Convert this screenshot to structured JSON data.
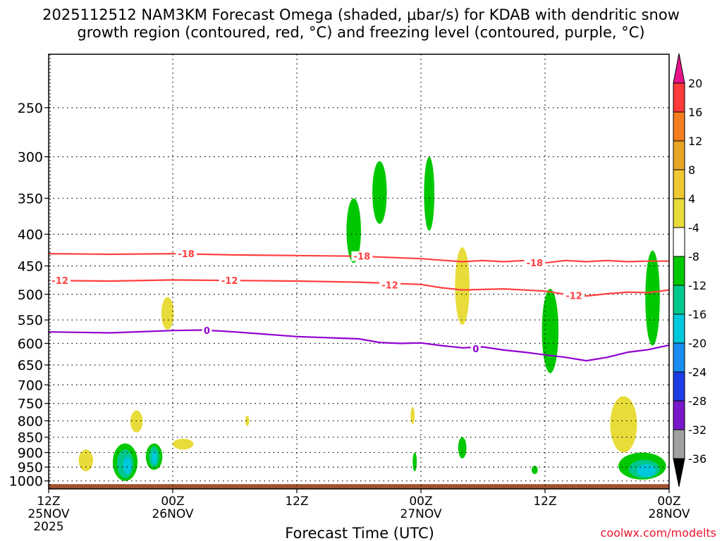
{
  "chart_data": {
    "type": "heatmap",
    "title_line1": "2025112512 NAM3KM Forecast Omega (shaded, μbar/s) for KDAB with dendritic snow",
    "title_line2": "growth region (contoured, red, °C) and freezing level (contoured, purple, °C)",
    "xlabel": "Forecast Time (UTC)",
    "credit": "coolwx.com/modelts",
    "y_axis": {
      "scale": "log-pressure",
      "inverted": true,
      "ticks": [
        250,
        300,
        350,
        400,
        450,
        500,
        550,
        600,
        650,
        700,
        750,
        800,
        850,
        900,
        950,
        1000
      ],
      "ticks_text": [
        "250",
        "300",
        "350",
        "400",
        "450",
        "500",
        "550",
        "600",
        "650",
        "700",
        "750",
        "800",
        "850",
        "900",
        "950",
        "1000"
      ],
      "range": [
        1030,
        205
      ]
    },
    "x_axis": {
      "range_hours": [
        0,
        60
      ],
      "ticks": [
        {
          "hour": 0,
          "l1": "12Z",
          "l2": "25NOV",
          "l3": "2025"
        },
        {
          "hour": 12,
          "l1": "00Z",
          "l2": "26NOV",
          "l3": ""
        },
        {
          "hour": 24,
          "l1": "12Z",
          "l2": "",
          "l3": ""
        },
        {
          "hour": 36,
          "l1": "00Z",
          "l2": "27NOV",
          "l3": ""
        },
        {
          "hour": 48,
          "l1": "12Z",
          "l2": "",
          "l3": ""
        },
        {
          "hour": 60,
          "l1": "00Z",
          "l2": "28NOV",
          "l3": ""
        }
      ]
    },
    "grid": true,
    "colorbar": {
      "labels": [
        "20",
        "16",
        "12",
        "8",
        "4",
        "-4",
        "-8",
        "-12",
        "-16",
        "-20",
        "-24",
        "-28",
        "-32",
        "-36"
      ],
      "levels": [
        20,
        16,
        12,
        8,
        4,
        -4,
        -8,
        -12,
        -16,
        -20,
        -24,
        -28,
        -32,
        -36
      ],
      "colors": [
        "#ff3a3a",
        "#f57f20",
        "#e8a425",
        "#f0c832",
        "#e8dc3a",
        "#ffffff",
        "#00c800",
        "#00c88c",
        "#00c8dc",
        "#1a8ef0",
        "#1e3ce6",
        "#7818c8",
        "#a000c8",
        "#a0a0a0"
      ],
      "top_arrow_color": "#e8148c",
      "bottom_arrow_color": "#000000"
    },
    "contours": [
      {
        "label": "-18",
        "color": "#ff4040",
        "points": [
          [
            0,
            430
          ],
          [
            6,
            431
          ],
          [
            12,
            430
          ],
          [
            18,
            432
          ],
          [
            24,
            433
          ],
          [
            30,
            434
          ],
          [
            36,
            438
          ],
          [
            40,
            443
          ],
          [
            42,
            441
          ],
          [
            44,
            443
          ],
          [
            46,
            441
          ],
          [
            48,
            445
          ],
          [
            50,
            441
          ],
          [
            52,
            443
          ],
          [
            54,
            441
          ],
          [
            56,
            443
          ],
          [
            58,
            442
          ],
          [
            60,
            442
          ]
        ]
      },
      {
        "label": "-12",
        "color": "#ff4040",
        "points": [
          [
            0,
            475
          ],
          [
            6,
            476
          ],
          [
            12,
            474
          ],
          [
            18,
            475
          ],
          [
            24,
            476
          ],
          [
            30,
            478
          ],
          [
            36,
            482
          ],
          [
            38,
            488
          ],
          [
            40,
            492
          ],
          [
            44,
            490
          ],
          [
            48,
            494
          ],
          [
            50,
            500
          ],
          [
            52,
            503
          ],
          [
            54,
            499
          ],
          [
            56,
            496
          ],
          [
            58,
            497
          ],
          [
            60,
            492
          ]
        ]
      },
      {
        "label": "0",
        "color": "#9000d0",
        "points": [
          [
            0,
            575
          ],
          [
            6,
            577
          ],
          [
            12,
            572
          ],
          [
            15,
            571
          ],
          [
            18,
            575
          ],
          [
            24,
            585
          ],
          [
            30,
            590
          ],
          [
            32,
            598
          ],
          [
            34,
            600
          ],
          [
            36,
            599
          ],
          [
            38,
            605
          ],
          [
            40,
            610
          ],
          [
            42,
            608
          ],
          [
            44,
            615
          ],
          [
            46,
            620
          ],
          [
            48,
            626
          ],
          [
            50,
            632
          ],
          [
            52,
            640
          ],
          [
            54,
            632
          ],
          [
            56,
            620
          ],
          [
            58,
            614
          ],
          [
            60,
            604
          ]
        ]
      }
    ],
    "contour_labels": [
      {
        "text": "-18",
        "hour": 13.3,
        "p": 430
      },
      {
        "text": "-18",
        "hour": 30.3,
        "p": 434
      },
      {
        "text": "-18",
        "hour": 47.0,
        "p": 445
      },
      {
        "text": "-12",
        "hour": 1.1,
        "p": 475
      },
      {
        "text": "-12",
        "hour": 17.5,
        "p": 475
      },
      {
        "text": "-12",
        "hour": 33.0,
        "p": 483
      },
      {
        "text": "-12",
        "hour": 50.8,
        "p": 502
      },
      {
        "text": "0",
        "hour": 15.3,
        "p": 572
      },
      {
        "text": "0",
        "hour": 41.3,
        "p": 612
      }
    ],
    "omega_regions": [
      {
        "level": "4",
        "color": "#e8dc3a",
        "center": [
          3.6,
          925
        ],
        "rx": 0.7,
        "p_range": [
          890,
          965
        ]
      },
      {
        "level": "4",
        "color": "#e8dc3a",
        "center": [
          8.5,
          800
        ],
        "rx": 0.6,
        "p_range": [
          770,
          835
        ]
      },
      {
        "level": "4",
        "color": "#e8dc3a",
        "center": [
          11.5,
          535
        ],
        "rx": 0.6,
        "p_range": [
          505,
          570
        ]
      },
      {
        "level": "4",
        "color": "#e8dc3a",
        "center": [
          13.0,
          870
        ],
        "rx": 1.0,
        "p_range": [
          855,
          890
        ]
      },
      {
        "level": "4",
        "color": "#e8dc3a",
        "center": [
          19.2,
          800
        ],
        "rx": 0.2,
        "p_range": [
          785,
          815
        ]
      },
      {
        "level": "4",
        "color": "#e8dc3a",
        "center": [
          35.2,
          785
        ],
        "rx": 0.2,
        "p_range": [
          760,
          810
        ]
      },
      {
        "level": "4",
        "color": "#e8dc3a",
        "center": [
          40.0,
          490
        ],
        "rx": 0.7,
        "p_range": [
          420,
          560
        ]
      },
      {
        "level": "4",
        "color": "#e8dc3a",
        "center": [
          55.6,
          810
        ],
        "rx": 1.3,
        "p_range": [
          730,
          900
        ]
      },
      {
        "level": "-4",
        "color": "#00c800",
        "center": [
          7.4,
          935
        ],
        "rx": 1.2,
        "p_range": [
          870,
          1000
        ]
      },
      {
        "level": "-4",
        "color": "#00c800",
        "center": [
          10.2,
          918
        ],
        "rx": 0.8,
        "p_range": [
          870,
          960
        ]
      },
      {
        "level": "-4",
        "color": "#00c800",
        "center": [
          29.5,
          400
        ],
        "rx": 0.7,
        "p_range": [
          350,
          445
        ]
      },
      {
        "level": "-4",
        "color": "#00c800",
        "center": [
          32.0,
          345
        ],
        "rx": 0.7,
        "p_range": [
          305,
          385
        ]
      },
      {
        "level": "-4",
        "color": "#00c800",
        "center": [
          36.8,
          345
        ],
        "rx": 0.5,
        "p_range": [
          300,
          395
        ]
      },
      {
        "level": "-4",
        "color": "#00c800",
        "center": [
          35.4,
          940
        ],
        "rx": 0.2,
        "p_range": [
          900,
          965
        ]
      },
      {
        "level": "-4",
        "color": "#00c800",
        "center": [
          40.0,
          885
        ],
        "rx": 0.4,
        "p_range": [
          850,
          920
        ]
      },
      {
        "level": "-4",
        "color": "#00c800",
        "center": [
          47.0,
          960
        ],
        "rx": 0.3,
        "p_range": [
          945,
          975
        ]
      },
      {
        "level": "-4",
        "color": "#00c800",
        "center": [
          48.5,
          580
        ],
        "rx": 0.8,
        "p_range": [
          490,
          670
        ]
      },
      {
        "level": "-4",
        "color": "#00c800",
        "center": [
          58.4,
          510
        ],
        "rx": 0.7,
        "p_range": [
          425,
          605
        ]
      },
      {
        "level": "-4",
        "color": "#00c800",
        "center": [
          57.4,
          960
        ],
        "rx": 2.3,
        "p_range": [
          900,
          995
        ]
      },
      {
        "level": "-8",
        "color": "#00c88c",
        "center": [
          7.4,
          945
        ],
        "rx": 0.8,
        "p_range": [
          890,
          990
        ]
      },
      {
        "level": "-8",
        "color": "#00c88c",
        "center": [
          10.2,
          918
        ],
        "rx": 0.5,
        "p_range": [
          880,
          950
        ]
      },
      {
        "level": "-8",
        "color": "#00c88c",
        "center": [
          57.6,
          962
        ],
        "rx": 1.5,
        "p_range": [
          925,
          990
        ]
      },
      {
        "level": "-12",
        "color": "#00c8dc",
        "center": [
          7.6,
          950
        ],
        "rx": 0.4,
        "p_range": [
          915,
          975
        ]
      },
      {
        "level": "-12",
        "color": "#00c8dc",
        "center": [
          10.2,
          920
        ],
        "rx": 0.25,
        "p_range": [
          895,
          940
        ]
      },
      {
        "level": "-12",
        "color": "#00c8dc",
        "center": [
          57.8,
          962
        ],
        "rx": 0.9,
        "p_range": [
          940,
          985
        ]
      }
    ],
    "ground": {
      "color": "#a0522d",
      "p_top": 1012
    }
  }
}
